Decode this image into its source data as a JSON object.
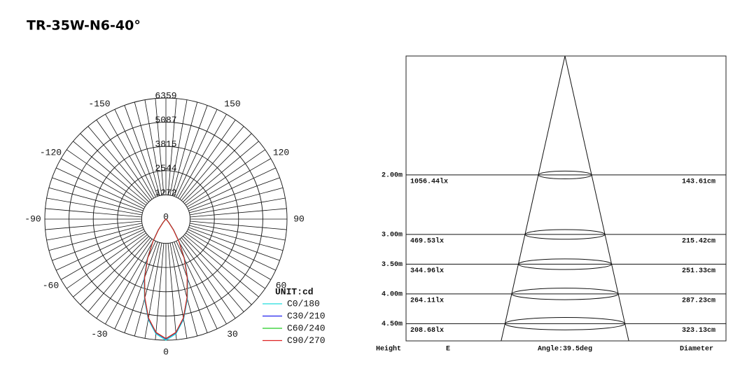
{
  "chart_data": [
    {
      "type": "polar",
      "title": "TR-35W-N6-40°",
      "unit": "UNIT:cd",
      "rlim": [
        0,
        6359
      ],
      "rticks": [
        0,
        1272,
        2544,
        3815,
        5087,
        6359
      ],
      "thetaticks": [
        0,
        30,
        60,
        90,
        120,
        150,
        -150,
        -120,
        -90,
        -60,
        -30
      ],
      "x": [
        -50,
        -45,
        -40,
        -35,
        -30,
        -25,
        -20,
        -15,
        -10,
        -5,
        0,
        5,
        10,
        15,
        20,
        25,
        30,
        35,
        40,
        45,
        50
      ],
      "series": [
        {
          "name": "C0/180",
          "color": "#22dddd",
          "values": [
            0,
            90,
            270,
            740,
            1450,
            2350,
            3350,
            4350,
            5350,
            6050,
            6359,
            6050,
            5350,
            4350,
            3350,
            2350,
            1450,
            740,
            270,
            90,
            0
          ]
        },
        {
          "name": "C30/210",
          "color": "#2222ee",
          "values": [
            0,
            80,
            250,
            700,
            1400,
            2300,
            3300,
            4300,
            5300,
            6000,
            6300,
            6000,
            5300,
            4300,
            3300,
            2300,
            1400,
            700,
            250,
            80,
            0
          ]
        },
        {
          "name": "C60/240",
          "color": "#22cc22",
          "values": [
            0,
            75,
            240,
            690,
            1380,
            2280,
            3280,
            4280,
            5280,
            5980,
            6280,
            5980,
            5280,
            4280,
            3280,
            2280,
            1380,
            690,
            240,
            75,
            0
          ]
        },
        {
          "name": "C90/270",
          "color": "#dd2222",
          "values": [
            0,
            70,
            230,
            680,
            1370,
            2270,
            3270,
            4270,
            5270,
            5970,
            6270,
            5970,
            5270,
            4270,
            3270,
            2270,
            1370,
            680,
            230,
            70,
            0
          ]
        }
      ]
    },
    {
      "type": "cone",
      "ylabel": "Height",
      "angle": {
        "value": 39.5,
        "label": "Angle:39.5deg"
      },
      "ylim": [
        0,
        4.79
      ],
      "yticks": [
        {
          "value": 2,
          "label": "2.00m"
        },
        {
          "value": 3,
          "label": "3.00m"
        },
        {
          "value": 3.5,
          "label": "3.50m"
        },
        {
          "value": 4,
          "label": "4.00m"
        },
        {
          "value": 4.5,
          "label": "4.50m"
        }
      ],
      "series": [
        {
          "name": "E",
          "values": [
            1056.44,
            469.53,
            344.96,
            264.11,
            208.68
          ],
          "value_labels": [
            "1056.44lx",
            "469.53lx",
            "344.96lx",
            "264.11lx",
            "208.68lx"
          ]
        },
        {
          "name": "Diameter",
          "values": [
            143.61,
            215.42,
            251.33,
            287.23,
            323.13
          ],
          "value_labels": [
            "143.61cm",
            "215.42cm",
            "251.33cm",
            "287.23cm",
            "323.13cm"
          ]
        }
      ]
    }
  ]
}
